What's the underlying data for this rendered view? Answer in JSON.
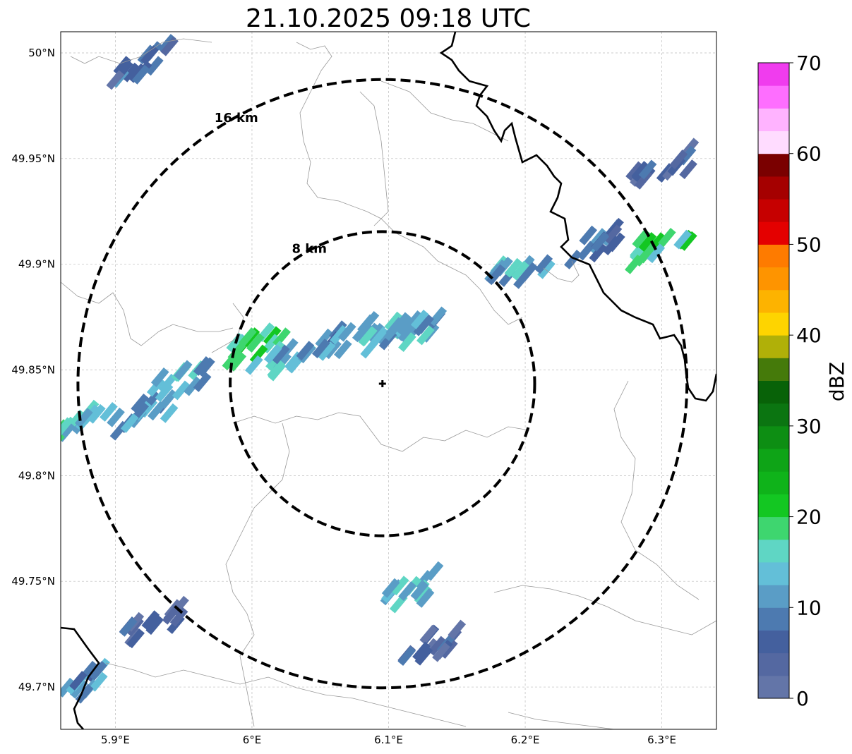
{
  "title": "21.10.2025 09:18 UTC",
  "axes": {
    "x_range": [
      5.86,
      6.34
    ],
    "y_range": [
      49.68,
      50.01
    ],
    "x_ticks": [
      {
        "value": 5.9,
        "label": "5.9°E"
      },
      {
        "value": 6.0,
        "label": "6°E"
      },
      {
        "value": 6.1,
        "label": "6.1°E"
      },
      {
        "value": 6.2,
        "label": "6.2°E"
      },
      {
        "value": 6.3,
        "label": "6.3°E"
      }
    ],
    "y_ticks": [
      {
        "value": 50.0,
        "label": "50°N"
      },
      {
        "value": 49.95,
        "label": "49.95°N"
      },
      {
        "value": 49.9,
        "label": "49.9°N"
      },
      {
        "value": 49.85,
        "label": "49.85°N"
      },
      {
        "value": 49.8,
        "label": "49.8°N"
      },
      {
        "value": 49.75,
        "label": "49.75°N"
      },
      {
        "value": 49.7,
        "label": "49.7°N"
      }
    ],
    "grid": true
  },
  "radar": {
    "center": {
      "lon": 6.0955,
      "lat": 49.8435
    },
    "rings": [
      {
        "radius_km": 8,
        "label": "8 km"
      },
      {
        "radius_km": 16,
        "label": "16 km"
      }
    ]
  },
  "colorbar": {
    "label": "dBZ",
    "min": 0,
    "max": 70,
    "tick_values": [
      0,
      10,
      20,
      30,
      40,
      50,
      60,
      70
    ],
    "tick_labels": [
      "0",
      "10",
      "20",
      "30",
      "40",
      "50",
      "60",
      "70"
    ],
    "colors": [
      "#6375a8",
      "#5468a1",
      "#44609e",
      "#4d7ab0",
      "#5a9dc6",
      "#63bfd8",
      "#5fd6c4",
      "#3ed66f",
      "#13c722",
      "#0fb31a",
      "#0ea417",
      "#0d8e13",
      "#0b7511",
      "#086208",
      "#457a0a",
      "#b0b008",
      "#fed400",
      "#fdb300",
      "#fe9400",
      "#fe7b00",
      "#e40000",
      "#c60000",
      "#a50000",
      "#7a0000",
      "#ffdcff",
      "#ffb3ff",
      "#fe6eff",
      "#f03cee"
    ]
  },
  "chart_data": {
    "type": "heatmap",
    "title": "21.10.2025 09:18 UTC",
    "xlabel": "",
    "ylabel": "",
    "colorbar_label": "dBZ",
    "value_range": [
      0,
      70
    ],
    "echo_cells": [
      {
        "lon": 5.875,
        "lat": 49.825,
        "dbz": 16
      },
      {
        "lon": 5.92,
        "lat": 49.83,
        "dbz": 12
      },
      {
        "lon": 5.95,
        "lat": 49.845,
        "dbz": 13
      },
      {
        "lon": 6.005,
        "lat": 49.862,
        "dbz": 19
      },
      {
        "lon": 6.02,
        "lat": 49.855,
        "dbz": 14
      },
      {
        "lon": 6.07,
        "lat": 49.865,
        "dbz": 12
      },
      {
        "lon": 6.1,
        "lat": 49.868,
        "dbz": 14
      },
      {
        "lon": 6.12,
        "lat": 49.87,
        "dbz": 13
      },
      {
        "lon": 6.195,
        "lat": 49.897,
        "dbz": 13
      },
      {
        "lon": 6.255,
        "lat": 49.91,
        "dbz": 9
      },
      {
        "lon": 6.3,
        "lat": 49.91,
        "dbz": 18
      },
      {
        "lon": 6.3,
        "lat": 49.945,
        "dbz": 6
      },
      {
        "lon": 6.115,
        "lat": 49.745,
        "dbz": 14
      },
      {
        "lon": 6.13,
        "lat": 49.72,
        "dbz": 6
      },
      {
        "lon": 5.93,
        "lat": 49.73,
        "dbz": 5
      },
      {
        "lon": 5.87,
        "lat": 49.7,
        "dbz": 11
      },
      {
        "lon": 5.92,
        "lat": 49.995,
        "dbz": 7
      }
    ]
  }
}
